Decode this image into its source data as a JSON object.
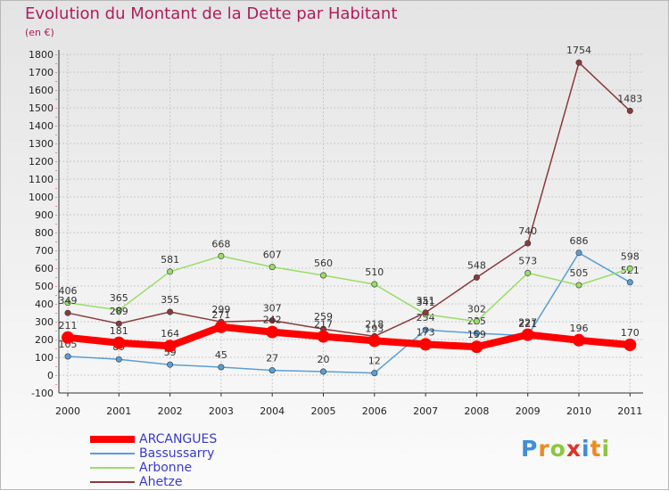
{
  "title": "Evolution du Montant de la Dette par Habitant",
  "subtitle": "(en €)",
  "colors": {
    "title": "#b01c5c",
    "legend_text": "#3a3acc",
    "grid": "#c9c9c9"
  },
  "logo": {
    "text": "Proxiti",
    "letters": [
      {
        "char": "P",
        "color": "#3d8fd6"
      },
      {
        "char": "r",
        "color": "#f08a1c"
      },
      {
        "char": "o",
        "color": "#8cc63f"
      },
      {
        "char": "x",
        "color": "#e0322a"
      },
      {
        "char": "i",
        "color": "#3d8fd6"
      },
      {
        "char": "t",
        "color": "#f08a1c"
      },
      {
        "char": "i",
        "color": "#8cc63f"
      }
    ]
  },
  "chart_data": {
    "type": "line",
    "x": [
      "2000",
      "2001",
      "2002",
      "2003",
      "2004",
      "2005",
      "2006",
      "2007",
      "2008",
      "2009",
      "2010",
      "2011"
    ],
    "yticks": [
      -100,
      0,
      100,
      200,
      300,
      400,
      500,
      600,
      700,
      800,
      900,
      1000,
      1100,
      1200,
      1300,
      1400,
      1500,
      1600,
      1700,
      1800
    ],
    "ylim": [
      -100,
      1800
    ],
    "grid": true,
    "legend_position": "bottom-left",
    "series": [
      {
        "name": "ARCANGUES",
        "color": "#ff0000",
        "width": 8,
        "values": [
          211,
          181,
          164,
          271,
          242,
          217,
          193,
          173,
          159,
          227,
          196,
          170
        ],
        "labels": [
          "211",
          "181",
          "164",
          "271",
          "242",
          "217",
          "193",
          "173",
          "159",
          "227",
          "196",
          "170"
        ]
      },
      {
        "name": "Bassussarry",
        "color": "#5b9ed6",
        "width": 1.5,
        "values": [
          105,
          89,
          59,
          45,
          27,
          20,
          12,
          254,
          235,
          221,
          686,
          521
        ],
        "labels": [
          "105",
          "89",
          "59",
          "45",
          "27",
          "20",
          "12",
          "254",
          "235",
          "221",
          "686",
          "521"
        ]
      },
      {
        "name": "Arbonne",
        "color": "#99dd66",
        "width": 1.5,
        "values": [
          406,
          365,
          581,
          668,
          607,
          560,
          510,
          341,
          302,
          573,
          505,
          598
        ],
        "labels": [
          "406",
          "365",
          "581",
          "668",
          "607",
          "560",
          "510",
          "341",
          "302",
          "573",
          "505",
          "598"
        ]
      },
      {
        "name": "Ahetze",
        "color": "#8b3a3a",
        "width": 1.5,
        "values": [
          349,
          289,
          355,
          299,
          307,
          259,
          218,
          351,
          548,
          740,
          1754,
          1483
        ],
        "labels": [
          "349",
          "289",
          "355",
          "299",
          "307",
          "259",
          "218",
          "351",
          "548",
          "740",
          "1754",
          "1483"
        ]
      }
    ]
  }
}
